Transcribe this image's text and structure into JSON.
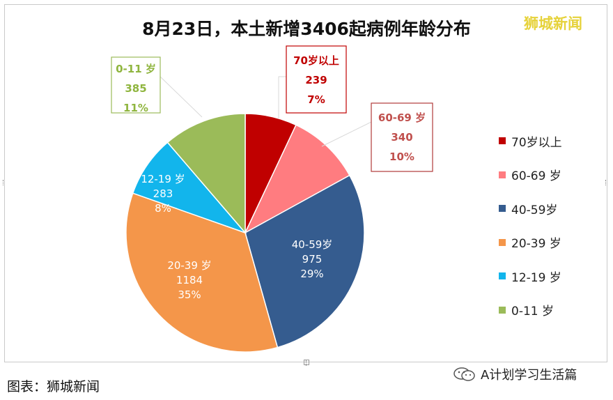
{
  "title": "8月23日，本土新增3406起病例年龄分布",
  "watermark": "狮城新闻",
  "footer": {
    "source": "图表：狮城新闻",
    "account": "A计划学习生活篇"
  },
  "colors": {
    "70plus": "#c00000",
    "60_69": "#ff7c80",
    "40_59": "#355c8f",
    "20_39": "#f4964a",
    "12_19": "#12b5ec",
    "0_11": "#9bbb59"
  },
  "chart_data": {
    "type": "pie",
    "title": "8月23日，本土新增3406起病例年龄分布",
    "legend_position": "right",
    "slices": [
      {
        "label": "70岁以上",
        "legend": "70岁以上",
        "value": 239,
        "percent": "7%",
        "color": "#c00000"
      },
      {
        "label": "60-69 岁",
        "legend": "60-69 岁",
        "value": 340,
        "percent": "10%",
        "color": "#ff7c80"
      },
      {
        "label": "40-59岁",
        "legend": "40-59岁",
        "value": 975,
        "percent": "29%",
        "color": "#355c8f"
      },
      {
        "label": "20-39 岁",
        "legend": "20-39 岁",
        "value": 1184,
        "percent": "35%",
        "color": "#f4964a"
      },
      {
        "label": "12-19 岁",
        "legend": "12-19 岁",
        "value": 283,
        "percent": "8%",
        "color": "#12b5ec"
      },
      {
        "label": "0-11 岁",
        "legend": "0-11 岁",
        "value": 385,
        "percent": "11%",
        "color": "#9bbb59"
      }
    ]
  }
}
